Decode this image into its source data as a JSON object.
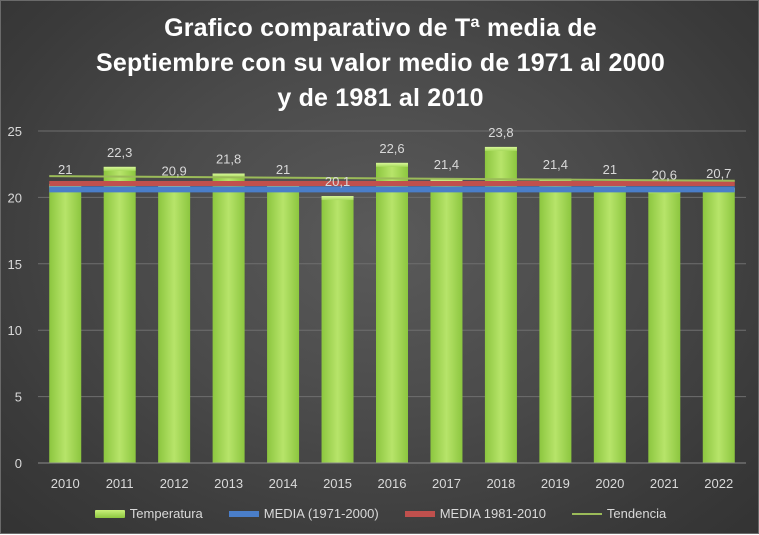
{
  "chart_data": {
    "type": "bar",
    "title_lines": [
      "Grafico comparativo de Tª media de",
      "Septiembre con su valor medio de 1971 al 2000",
      "y de 1981 al 2010"
    ],
    "categories": [
      "2010",
      "2011",
      "2012",
      "2013",
      "2014",
      "2015",
      "2016",
      "2017",
      "2018",
      "2019",
      "2020",
      "2021",
      "2022"
    ],
    "series": [
      {
        "name": "Temperatura",
        "type": "bar",
        "values": [
          21,
          22.3,
          20.9,
          21.8,
          21,
          20.1,
          22.6,
          21.4,
          23.8,
          21.4,
          21,
          20.6,
          20.7
        ],
        "labels": [
          "21",
          "22,3",
          "20,9",
          "21,8",
          "21",
          "20,1",
          "22,6",
          "21,4",
          "23,8",
          "21,4",
          "21",
          "20,6",
          "20,7"
        ]
      },
      {
        "name": "MEDIA (1971-2000)",
        "type": "line",
        "value": 20.6
      },
      {
        "name": "MEDIA 1981-2010",
        "type": "line",
        "value": 21.05
      },
      {
        "name": "Tendencia",
        "type": "trend",
        "start": 21.6,
        "end": 21.25
      }
    ],
    "ylim": [
      0,
      25
    ],
    "yticks": [
      "0",
      "5",
      "10",
      "15",
      "20",
      "25"
    ],
    "grid": true,
    "legend_position": "bottom",
    "colors": {
      "bar": "#9bd24a",
      "media_1971": "#4a7ec9",
      "media_1981": "#c0504d",
      "trend": "#9bbb59"
    }
  }
}
